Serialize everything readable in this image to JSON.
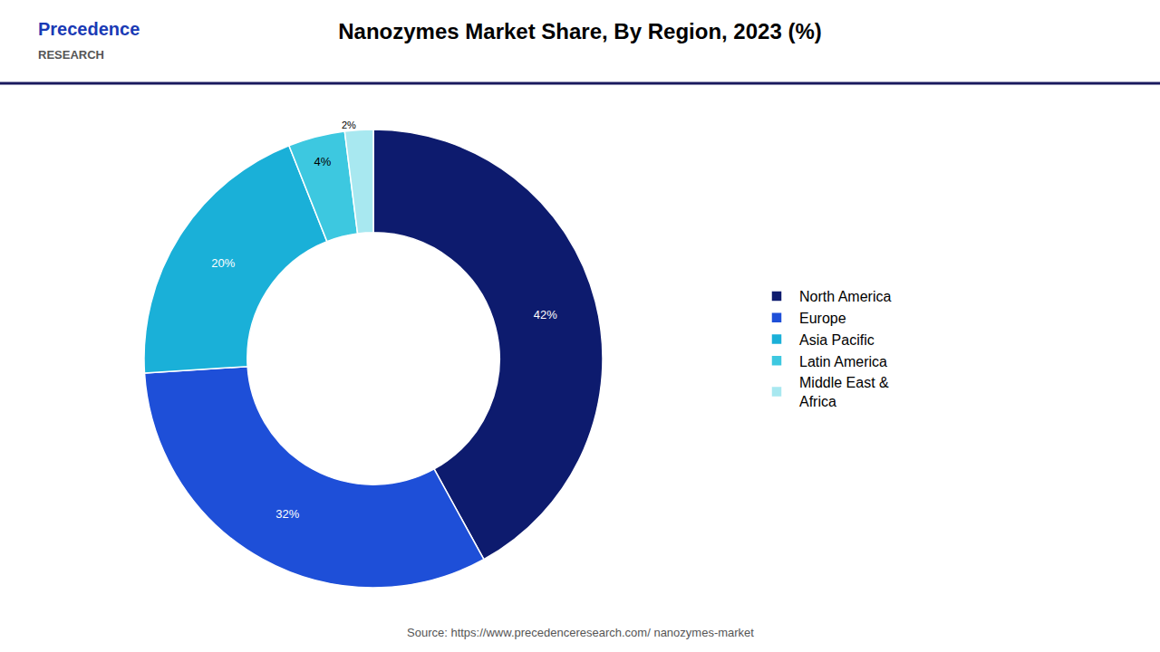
{
  "chart_data": {
    "type": "pie",
    "title": "Nanozymes Market Share, By Region, 2023 (%)",
    "categories": [
      "North America",
      "Europe",
      "Asia Pacific",
      "Latin America",
      "Middle East &\nAfrica"
    ],
    "values": [
      42,
      32,
      20,
      4,
      2
    ],
    "value_labels": [
      "42%",
      "32%",
      "20%",
      "4%",
      "2%"
    ],
    "colors": [
      "#0d1b6e",
      "#1e4fd8",
      "#1ab0d8",
      "#3dc8e0",
      "#a8e8f0"
    ],
    "data_labels": true,
    "legend": "right",
    "annotations": [
      "Precedence",
      "RESEARCH",
      "Source: https://www.precedenceresearch.com/ nanozymes-market"
    ]
  }
}
